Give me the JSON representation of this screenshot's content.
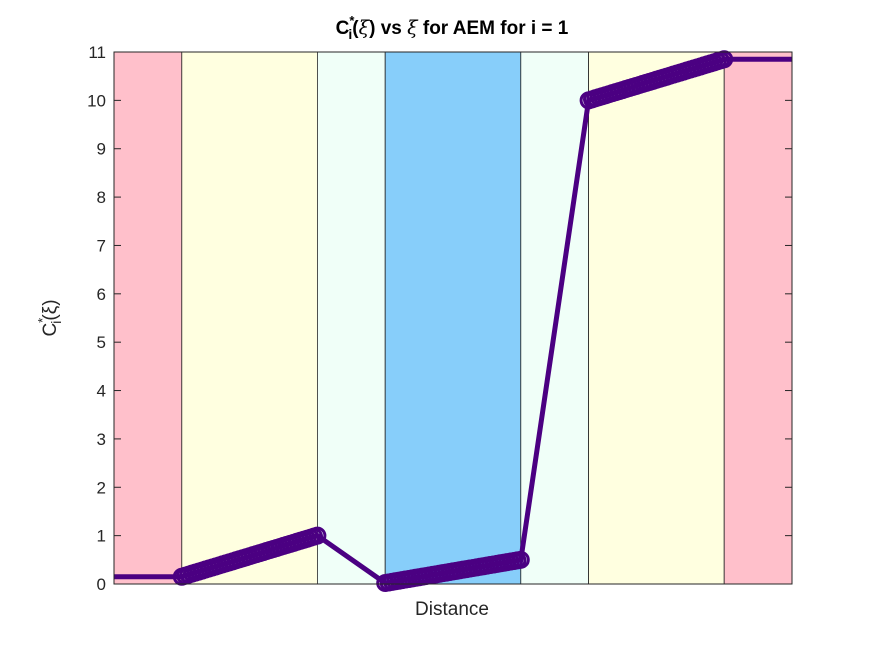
{
  "chart_data": {
    "type": "line",
    "title": "C",
    "title_superscript": "*",
    "title_subscript": "i",
    "title_rest_1": "(",
    "title_symbol_1": "ξ",
    "title_rest_2": ") vs ",
    "title_symbol_2": "ξ",
    "title_rest_3": " for AEM for i = 1",
    "xlabel": "Distance",
    "ylabel_base": "C",
    "ylabel_superscript": "*",
    "ylabel_subscript": "i",
    "ylabel_rest": "(ξ)",
    "xlim": [
      0,
      10
    ],
    "ylim": [
      0,
      11
    ],
    "yticks": [
      "0",
      "1",
      "2",
      "3",
      "4",
      "5",
      "6",
      "7",
      "8",
      "9",
      "10",
      "11"
    ],
    "grid": false,
    "regions": [
      {
        "x0": 0,
        "x1": 1,
        "color": "#ffc0cb"
      },
      {
        "x0": 1,
        "x1": 3,
        "color": "#ffffe0"
      },
      {
        "x0": 3,
        "x1": 4,
        "color": "#f0fff8"
      },
      {
        "x0": 4,
        "x1": 6,
        "color": "#87cefa"
      },
      {
        "x0": 6,
        "x1": 7,
        "color": "#f0fff8"
      },
      {
        "x0": 7,
        "x1": 9,
        "color": "#ffffe0"
      },
      {
        "x0": 9,
        "x1": 10,
        "color": "#ffc0cb"
      }
    ],
    "line_color": "#4b0082",
    "line": {
      "x": [
        0,
        1,
        3,
        4,
        6,
        7,
        9,
        10
      ],
      "y": [
        0.15,
        0.15,
        1.0,
        0.02,
        0.5,
        10.0,
        10.85,
        10.85
      ]
    },
    "markers": [
      {
        "x": [
          1,
          3
        ],
        "y": [
          0.15,
          1.0
        ]
      },
      {
        "x": [
          4,
          6
        ],
        "y": [
          0.02,
          0.5
        ]
      },
      {
        "x": [
          7,
          9
        ],
        "y": [
          10.0,
          10.85
        ]
      }
    ]
  }
}
